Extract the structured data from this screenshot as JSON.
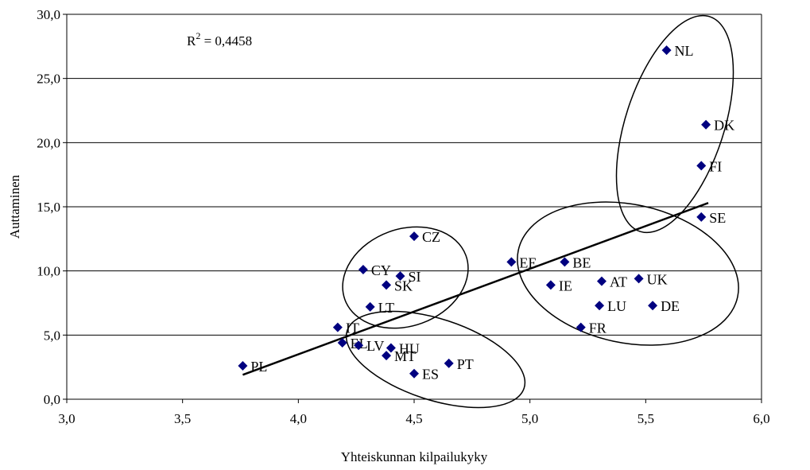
{
  "chart_data": {
    "type": "scatter",
    "xlabel": "Yhteiskunnan kilpailukyky",
    "ylabel": "Auttaminen",
    "xlim": [
      3.0,
      6.0
    ],
    "ylim": [
      0.0,
      30.0
    ],
    "x_ticks": [
      "3,0",
      "3,5",
      "4,0",
      "4,5",
      "5,0",
      "5,5",
      "6,0"
    ],
    "y_ticks": [
      "0,0",
      "5,0",
      "10,0",
      "15,0",
      "20,0",
      "25,0",
      "30,0"
    ],
    "grid": "horizontal",
    "marker_color": "#000080",
    "points": [
      {
        "label": "NL",
        "x": 5.59,
        "y": 27.2
      },
      {
        "label": "DK",
        "x": 5.76,
        "y": 21.4
      },
      {
        "label": "FI",
        "x": 5.74,
        "y": 18.2
      },
      {
        "label": "SE",
        "x": 5.74,
        "y": 14.2
      },
      {
        "label": "CZ",
        "x": 4.5,
        "y": 12.7
      },
      {
        "label": "EE",
        "x": 4.92,
        "y": 10.7
      },
      {
        "label": "BE",
        "x": 5.15,
        "y": 10.7
      },
      {
        "label": "CY",
        "x": 4.28,
        "y": 10.1
      },
      {
        "label": "SI",
        "x": 4.44,
        "y": 9.6
      },
      {
        "label": "SK",
        "x": 4.38,
        "y": 8.9
      },
      {
        "label": "IE",
        "x": 5.09,
        "y": 8.9
      },
      {
        "label": "AT",
        "x": 5.31,
        "y": 9.2
      },
      {
        "label": "UK",
        "x": 5.47,
        "y": 9.4
      },
      {
        "label": "LT",
        "x": 4.31,
        "y": 7.2
      },
      {
        "label": "LU",
        "x": 5.3,
        "y": 7.3
      },
      {
        "label": "DE",
        "x": 5.53,
        "y": 7.3
      },
      {
        "label": "IT",
        "x": 4.17,
        "y": 5.6
      },
      {
        "label": "FR",
        "x": 5.22,
        "y": 5.6
      },
      {
        "label": "EL",
        "x": 4.19,
        "y": 4.4
      },
      {
        "label": "LV",
        "x": 4.26,
        "y": 4.2
      },
      {
        "label": "HU",
        "x": 4.4,
        "y": 4.0
      },
      {
        "label": "MT",
        "x": 4.38,
        "y": 3.4
      },
      {
        "label": "PT",
        "x": 4.65,
        "y": 2.8
      },
      {
        "label": "ES",
        "x": 4.5,
        "y": 2.0
      },
      {
        "label": "PL",
        "x": 3.76,
        "y": 2.6
      }
    ],
    "trendline": {
      "x": [
        3.76,
        5.77
      ],
      "y": [
        1.9,
        15.3
      ]
    },
    "r2_base": "R",
    "r2_sup": "2",
    "r2_value": " = 0,4458"
  }
}
